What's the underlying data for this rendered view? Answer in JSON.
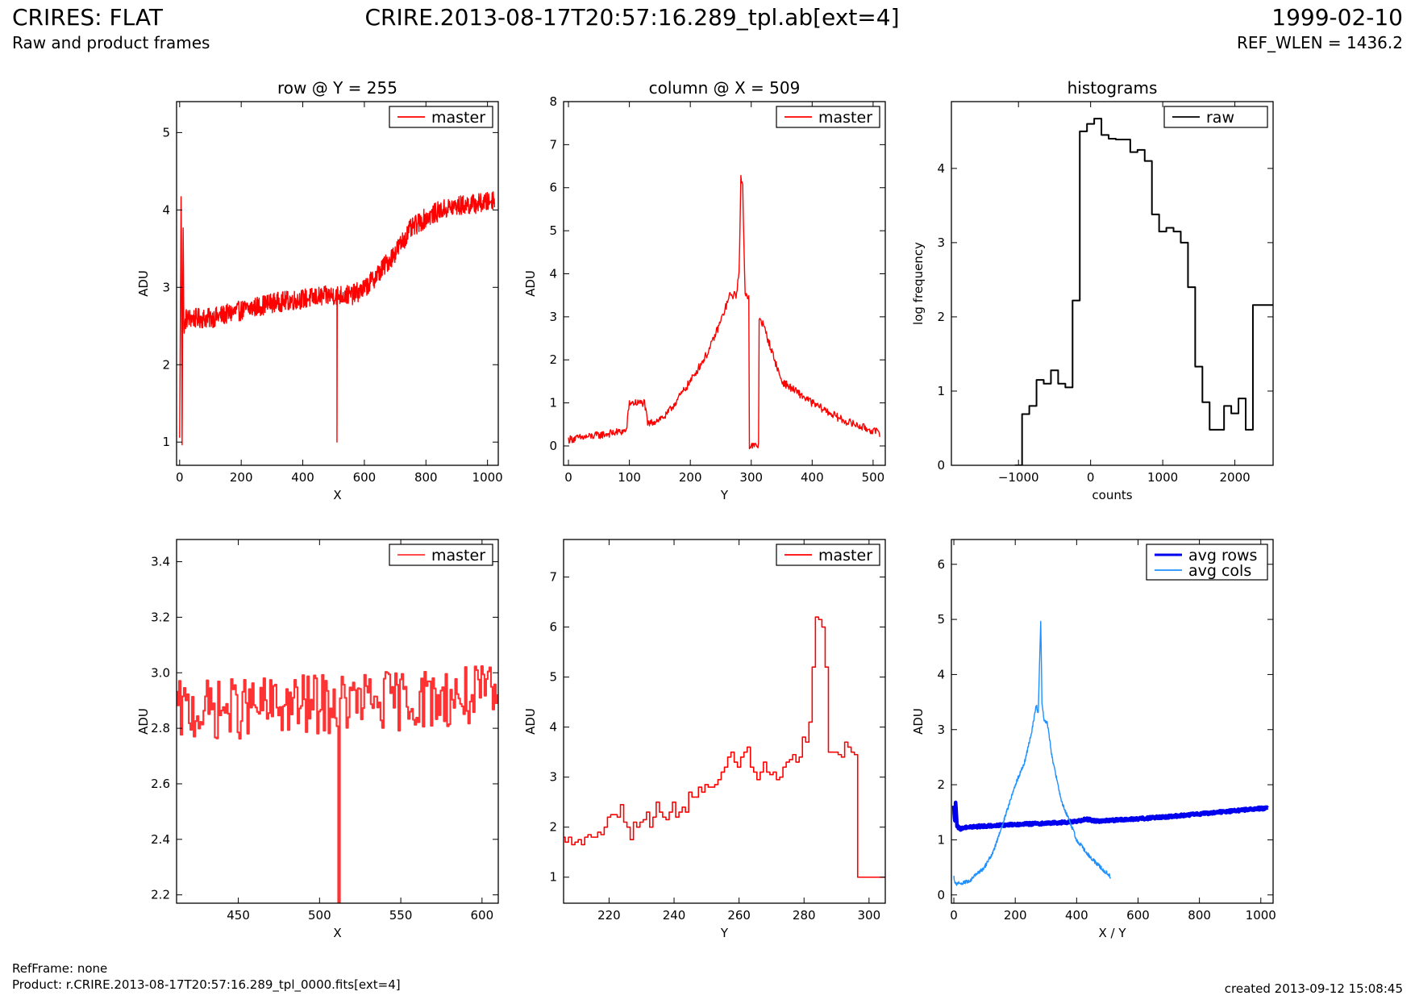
{
  "header": {
    "title": "CRIRES: FLAT",
    "subtitle": "Raw and product frames",
    "filename": "CRIRE.2013-08-17T20:57:16.289_tpl.ab[ext=4]",
    "date": "1999-02-10",
    "ref_wlen": "REF_WLEN = 1436.2"
  },
  "footer": {
    "refframe": "RefFrame: none",
    "product": "Product: r.CRIRE.2013-08-17T20:57:16.289_tpl_0000.fits[ext=4]",
    "created": "created 2013-09-12 15:08:45"
  },
  "colors": {
    "master": "#ff0000",
    "master_zoom": "#ff3333",
    "raw": "#000000",
    "avg_rows": "#0000ee",
    "avg_cols": "#1e90ff"
  },
  "chart_data": [
    {
      "type": "line",
      "title": "row @ Y = 255",
      "xlabel": "X",
      "ylabel": "ADU",
      "xlim": [
        -10,
        1035
      ],
      "ylim": [
        0.7,
        5.4
      ],
      "xticks": [
        0,
        200,
        400,
        600,
        800,
        1000
      ],
      "yticks": [
        1,
        2,
        3,
        4,
        5
      ],
      "legend": "top-right",
      "series": [
        {
          "name": "master",
          "color": "#ff0000",
          "style": "noisy",
          "x": [
            0,
            5,
            8,
            11,
            14,
            20,
            40,
            100,
            200,
            300,
            400,
            500,
            560,
            600,
            650,
            700,
            750,
            800,
            850,
            900,
            1000,
            1023
          ],
          "y": [
            1.0,
            4.4,
            1.0,
            3.9,
            2.4,
            2.6,
            2.6,
            2.6,
            2.7,
            2.8,
            2.85,
            2.9,
            2.9,
            2.98,
            3.2,
            3.45,
            3.75,
            3.9,
            4.0,
            4.05,
            4.1,
            4.15
          ],
          "noise": 0.13,
          "spikes": [
            {
              "x": 511,
              "y": 1.0
            }
          ]
        }
      ]
    },
    {
      "type": "line",
      "title": "column @ X = 509",
      "xlabel": "Y",
      "ylabel": "ADU",
      "xlim": [
        -8,
        520
      ],
      "ylim": [
        -0.45,
        8.0
      ],
      "xticks": [
        0,
        100,
        200,
        300,
        400,
        500
      ],
      "yticks": [
        0,
        1,
        2,
        3,
        4,
        5,
        6,
        7,
        8
      ],
      "legend": "top-right",
      "series": [
        {
          "name": "master",
          "color": "#ff0000",
          "style": "noisy",
          "x": [
            0,
            50,
            95,
            100,
            125,
            130,
            160,
            200,
            230,
            250,
            265,
            275,
            280,
            283,
            286,
            290,
            296,
            297,
            312,
            313,
            320,
            350,
            400,
            450,
            500,
            511
          ],
          "y": [
            0.15,
            0.25,
            0.35,
            1.0,
            1.0,
            0.5,
            0.7,
            1.5,
            2.2,
            2.9,
            3.5,
            3.5,
            4.0,
            6.2,
            6.0,
            3.5,
            3.5,
            0.0,
            0.0,
            3.0,
            2.8,
            1.5,
            1.0,
            0.6,
            0.35,
            0.3
          ],
          "noise": 0.09
        }
      ]
    },
    {
      "type": "line",
      "title": "histograms",
      "xlabel": "counts",
      "ylabel": "log frequency",
      "xlim": [
        -1930,
        2530
      ],
      "ylim": [
        0,
        4.9
      ],
      "xticks": [
        -1000,
        0,
        1000,
        2000
      ],
      "xticklabels": [
        "−1000",
        "0",
        "1000",
        "2000"
      ],
      "yticks": [
        0,
        1,
        2,
        3,
        4
      ],
      "legend": "top-right",
      "series": [
        {
          "name": "raw",
          "color": "#000000",
          "style": "step",
          "bin_edges": [
            -1050,
            -950,
            -850,
            -750,
            -650,
            -550,
            -450,
            -350,
            -250,
            -150,
            -50,
            50,
            150,
            250,
            350,
            450,
            550,
            650,
            750,
            850,
            950,
            1050,
            1150,
            1250,
            1350,
            1450,
            1550,
            1650,
            1750,
            1850,
            1950,
            2050,
            2150,
            2250,
            2350,
            2450,
            2550
          ],
          "values": [
            0.0,
            0.69,
            0.8,
            1.15,
            1.1,
            1.28,
            1.1,
            1.05,
            2.22,
            4.5,
            4.6,
            4.67,
            4.45,
            4.4,
            4.39,
            4.39,
            4.22,
            4.25,
            4.1,
            3.38,
            3.15,
            3.2,
            3.15,
            3.0,
            2.4,
            1.33,
            0.85,
            0.48,
            0.48,
            0.8,
            0.7,
            0.9,
            0.48,
            2.16,
            2.16,
            2.16
          ]
        }
      ]
    },
    {
      "type": "line",
      "title": "",
      "xlabel": "X",
      "ylabel": "ADU",
      "xlim": [
        412,
        610
      ],
      "ylim": [
        2.17,
        3.48
      ],
      "xticks": [
        450,
        500,
        550,
        600
      ],
      "yticks": [
        2.2,
        2.4,
        2.6,
        2.8,
        3.0,
        3.2,
        3.4
      ],
      "yticklabels": [
        "2.2",
        "2.4",
        "2.6",
        "2.8",
        "3.0",
        "3.2",
        "3.4"
      ],
      "legend": "top-right",
      "series": [
        {
          "name": "master",
          "color": "#ff3333",
          "style": "noisystep",
          "x": [
            412,
            610
          ],
          "y": [
            2.86,
            2.92
          ],
          "noise": 0.11,
          "spikes": [
            {
              "x": 512,
              "y": 2.17
            }
          ]
        }
      ]
    },
    {
      "type": "line",
      "title": "",
      "xlabel": "Y",
      "ylabel": "ADU",
      "xlim": [
        206,
        305
      ],
      "ylim": [
        0.48,
        7.75
      ],
      "xticks": [
        220,
        240,
        260,
        280,
        300
      ],
      "yticks": [
        1,
        2,
        3,
        4,
        5,
        6,
        7
      ],
      "legend": "top-right",
      "series": [
        {
          "name": "master",
          "color": "#ff0000",
          "style": "step",
          "x": [
            206,
            207,
            208,
            209,
            210,
            211,
            212,
            213,
            214,
            215,
            216,
            217,
            218,
            219,
            220,
            221,
            222,
            223,
            224,
            225,
            226,
            227,
            228,
            229,
            230,
            231,
            232,
            233,
            234,
            235,
            236,
            237,
            238,
            239,
            240,
            241,
            242,
            243,
            244,
            245,
            246,
            247,
            248,
            249,
            250,
            251,
            252,
            253,
            254,
            255,
            256,
            257,
            258,
            259,
            260,
            261,
            262,
            263,
            264,
            265,
            266,
            267,
            268,
            269,
            270,
            271,
            272,
            273,
            274,
            275,
            276,
            277,
            278,
            279,
            280,
            281,
            282,
            283,
            284,
            285,
            286,
            287,
            288,
            289,
            290,
            291,
            292,
            293,
            294,
            295,
            296,
            297,
            298,
            299,
            300,
            301,
            302,
            303,
            304,
            305
          ],
          "y": [
            1.8,
            1.7,
            1.8,
            1.65,
            1.7,
            1.75,
            1.65,
            1.8,
            1.85,
            1.8,
            1.8,
            1.9,
            1.85,
            2.0,
            2.2,
            2.25,
            2.25,
            2.2,
            2.45,
            2.1,
            2.0,
            1.75,
            2.1,
            2.0,
            2.1,
            2.15,
            2.3,
            2.0,
            2.2,
            2.5,
            2.3,
            2.2,
            2.15,
            2.3,
            2.5,
            2.2,
            2.3,
            2.4,
            2.3,
            2.7,
            2.6,
            2.6,
            2.8,
            2.7,
            2.85,
            2.8,
            2.8,
            2.85,
            2.95,
            3.1,
            3.2,
            3.4,
            3.5,
            3.3,
            3.2,
            3.4,
            3.5,
            3.6,
            3.2,
            3.1,
            2.95,
            3.1,
            3.3,
            3.1,
            3.05,
            3.1,
            2.95,
            3.0,
            3.2,
            3.3,
            3.35,
            3.45,
            3.3,
            3.4,
            3.8,
            3.7,
            4.1,
            5.2,
            6.2,
            6.15,
            6.0,
            5.2,
            3.5,
            3.5,
            3.5,
            3.45,
            3.4,
            3.7,
            3.6,
            3.5,
            3.45,
            1.0,
            1.0,
            1.0,
            1.0,
            1.0,
            1.0,
            1.0,
            1.0,
            1.0
          ]
        }
      ]
    },
    {
      "type": "line",
      "title": "",
      "xlabel": "X / Y",
      "ylabel": "ADU",
      "xlim": [
        -8,
        1040
      ],
      "ylim": [
        -0.15,
        6.45
      ],
      "xticks": [
        0,
        200,
        400,
        600,
        800,
        1000
      ],
      "yticks": [
        0,
        1,
        2,
        3,
        4,
        5,
        6
      ],
      "legend": "top-right",
      "series": [
        {
          "name": "avg rows",
          "color": "#0000ee",
          "style": "thick",
          "x": [
            0,
            3,
            6,
            10,
            20,
            40,
            100,
            200,
            300,
            400,
            430,
            460,
            500,
            600,
            700,
            800,
            900,
            1000,
            1023
          ],
          "y": [
            1.6,
            1.3,
            1.7,
            1.25,
            1.2,
            1.23,
            1.25,
            1.28,
            1.3,
            1.33,
            1.38,
            1.34,
            1.35,
            1.38,
            1.42,
            1.47,
            1.52,
            1.57,
            1.57
          ],
          "noise": 0.025
        },
        {
          "name": "avg cols",
          "color": "#1e90ff",
          "style": "noisy",
          "x": [
            0,
            3,
            10,
            50,
            100,
            130,
            160,
            200,
            230,
            255,
            268,
            275,
            283,
            287,
            293,
            305,
            320,
            350,
            380,
            400,
            450,
            511
          ],
          "y": [
            0.32,
            0.2,
            0.2,
            0.25,
            0.5,
            0.8,
            1.3,
            2.0,
            2.4,
            3.0,
            3.45,
            3.3,
            5.0,
            3.5,
            3.2,
            3.1,
            2.5,
            1.7,
            1.3,
            1.0,
            0.65,
            0.33
          ],
          "noise": 0.035
        }
      ]
    }
  ]
}
